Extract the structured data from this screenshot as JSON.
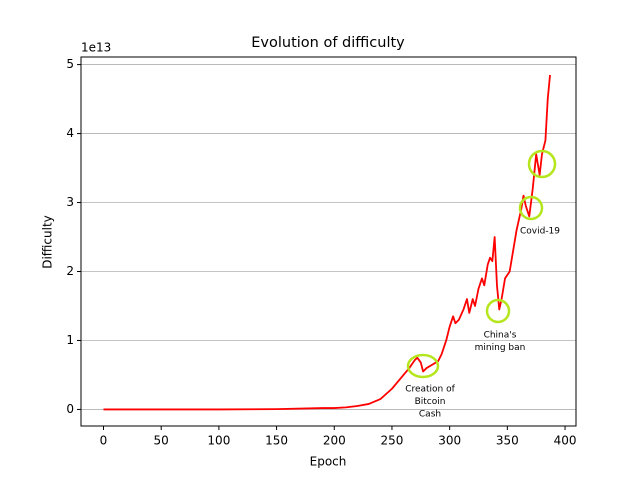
{
  "chart_data": {
    "type": "line",
    "title": "Evolution of difficulty",
    "x_label": "Epoch",
    "y_label": "Difficulty",
    "y_offset_label": "1e13",
    "x": [
      0,
      50,
      100,
      150,
      190,
      200,
      210,
      220,
      230,
      240,
      250,
      255,
      260,
      265,
      270,
      272,
      275,
      277,
      280,
      285,
      290,
      293,
      297,
      300,
      303,
      305,
      308,
      312,
      315,
      317,
      320,
      322,
      325,
      328,
      330,
      333,
      335,
      337,
      339,
      341,
      343,
      345,
      348,
      352,
      355,
      358,
      362,
      364,
      366,
      369,
      372,
      375,
      378,
      380,
      383,
      385,
      387
    ],
    "series": [
      {
        "name": "Difficulty",
        "color": "#ff0000",
        "values": [
          0,
          0,
          0,
          0.005,
          0.02,
          0.02,
          0.03,
          0.05,
          0.08,
          0.15,
          0.3,
          0.4,
          0.5,
          0.6,
          0.72,
          0.75,
          0.68,
          0.55,
          0.6,
          0.65,
          0.7,
          0.8,
          1.0,
          1.2,
          1.35,
          1.25,
          1.3,
          1.45,
          1.6,
          1.4,
          1.6,
          1.5,
          1.75,
          1.9,
          1.8,
          2.1,
          2.2,
          2.15,
          2.5,
          1.8,
          1.45,
          1.6,
          1.9,
          2.0,
          2.3,
          2.6,
          2.9,
          3.1,
          2.95,
          2.8,
          3.2,
          3.7,
          3.4,
          3.7,
          3.9,
          4.5,
          4.85
        ]
      }
    ],
    "xlim": [
      -19.5,
      409.5
    ],
    "ylim": [
      -0.24,
      5.11
    ],
    "xticks": [
      0,
      50,
      100,
      150,
      200,
      250,
      300,
      350,
      400
    ],
    "yticks": [
      0,
      1,
      2,
      3,
      4,
      5
    ],
    "grid": "y",
    "annotation_color": "#b5e61d",
    "annotations": [
      {
        "lines": [
          "Creation of",
          "Bitcoin",
          "Cash"
        ]
      },
      {
        "lines": [
          "China's",
          "mining ban"
        ]
      },
      {
        "lines": [
          "Covid-19"
        ]
      }
    ]
  }
}
